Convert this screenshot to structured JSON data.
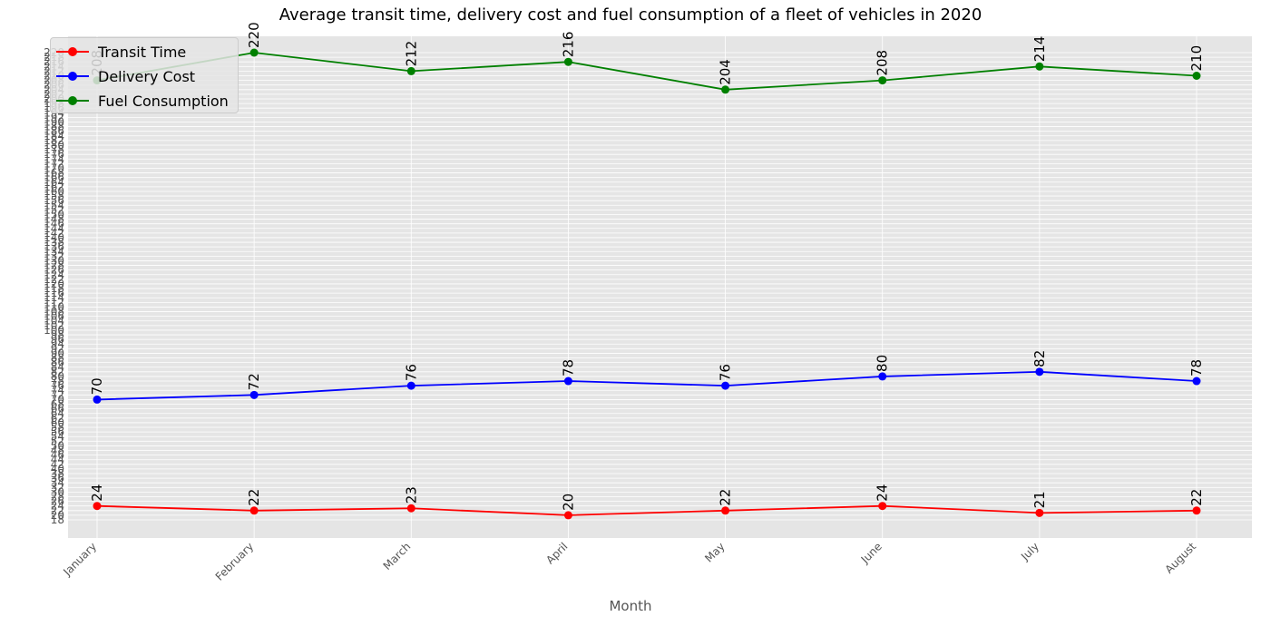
{
  "chart_data": {
    "type": "line",
    "title": "Average transit time, delivery cost and fuel consumption of a fleet of vehicles in 2020",
    "xlabel": "Month",
    "ylabel": "",
    "categories": [
      "January",
      "February",
      "March",
      "April",
      "May",
      "June",
      "July",
      "August"
    ],
    "series": [
      {
        "name": "Transit Time",
        "color": "#ff0000",
        "values": [
          24,
          22,
          23,
          20,
          22,
          24,
          21,
          22
        ]
      },
      {
        "name": "Delivery Cost",
        "color": "#0000ff",
        "values": [
          70,
          72,
          76,
          78,
          76,
          80,
          82,
          78
        ]
      },
      {
        "name": "Fuel Consumption",
        "color": "#008000",
        "values": [
          208,
          220,
          212,
          216,
          204,
          208,
          214,
          210
        ]
      }
    ],
    "ylim": [
      18,
      220
    ],
    "ytick_step": 2,
    "grid": true,
    "legend_position": "top-left",
    "background_color": "#e5e5e5",
    "grid_color": "#ffffff"
  }
}
